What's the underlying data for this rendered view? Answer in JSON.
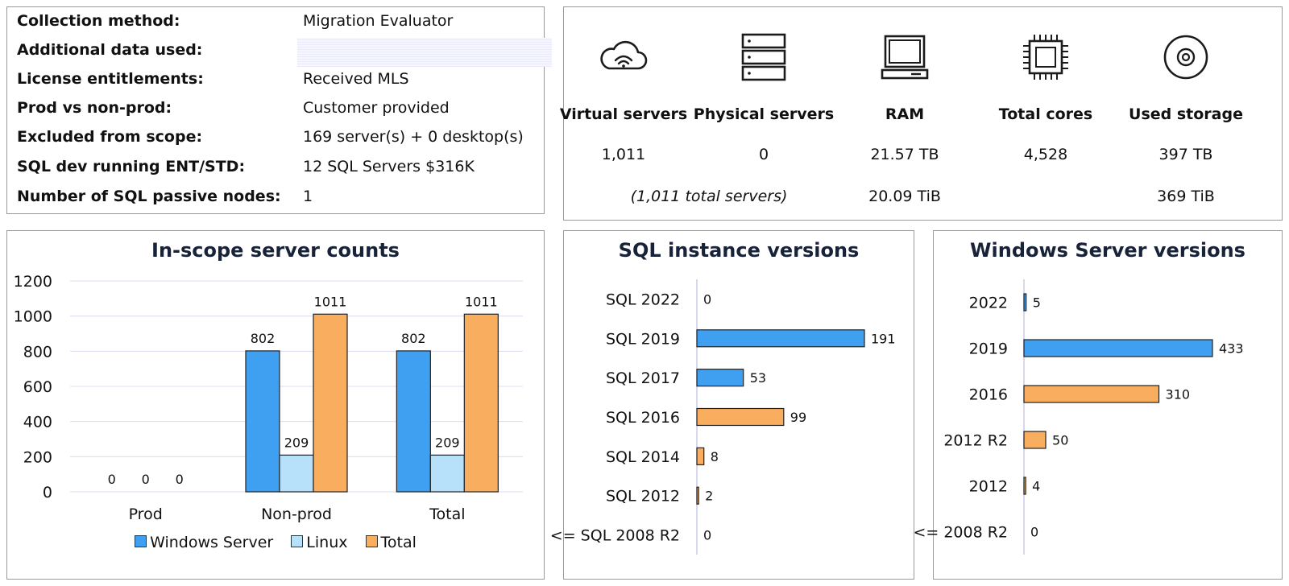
{
  "metadata": {
    "rows": [
      {
        "label": "Collection method:",
        "value": "Migration Evaluator"
      },
      {
        "label": "Additional data used:",
        "value": ""
      },
      {
        "label": "License entitlements:",
        "value": "Received MLS"
      },
      {
        "label": "Prod vs non-prod:",
        "value": "Customer provided"
      },
      {
        "label": "Excluded from scope:",
        "value": "169 server(s) + 0 desktop(s)"
      },
      {
        "label": "SQL dev running ENT/STD:",
        "value": "12 SQL Servers $316K"
      },
      {
        "label": "Number of SQL passive nodes:",
        "value": "1"
      }
    ]
  },
  "summary": {
    "virtual": {
      "label": "Virtual servers",
      "value": "1,011",
      "icon": "cloud-wifi-icon"
    },
    "physical": {
      "label": "Physical servers",
      "value": "0",
      "icon": "server-rack-icon"
    },
    "total_note": "(1,011 total servers)",
    "ram": {
      "label": "RAM",
      "value": "21.57 TB",
      "sub": "20.09 TiB",
      "icon": "computer-icon"
    },
    "cores": {
      "label": "Total cores",
      "value": "4,528",
      "icon": "cpu-chip-icon"
    },
    "storage": {
      "label": "Used storage",
      "value": "397 TB",
      "sub": "369 TiB",
      "icon": "disk-icon"
    }
  },
  "colors": {
    "windows": "#3fa0f2",
    "linux": "#b7e1fb",
    "total": "#f9ad5f",
    "grid": "#dcdcf0",
    "axis": "#c9cbe8",
    "bar_stroke": "#222222"
  },
  "chart_data": [
    {
      "type": "bar",
      "title": "In-scope server counts",
      "categories": [
        "Prod",
        "Non-prod",
        "Total"
      ],
      "series": [
        {
          "name": "Windows Server",
          "values": [
            0,
            802,
            802
          ]
        },
        {
          "name": "Linux",
          "values": [
            0,
            209,
            209
          ]
        },
        {
          "name": "Total",
          "values": [
            0,
            1011,
            1011
          ]
        }
      ],
      "ylim": [
        0,
        1200
      ],
      "yticks": [
        0,
        200,
        400,
        600,
        800,
        1000,
        1200
      ],
      "grid": true,
      "legend": "bottom"
    },
    {
      "type": "bar",
      "orientation": "horizontal",
      "title": "SQL instance versions",
      "categories": [
        "SQL 2022",
        "SQL 2019",
        "SQL 2017",
        "SQL 2016",
        "SQL 2014",
        "SQL 2012",
        "<= SQL 2008 R2"
      ],
      "values": [
        0,
        191,
        53,
        99,
        8,
        2,
        0
      ],
      "groups": [
        "current",
        "current",
        "current",
        "old",
        "old",
        "old",
        "old"
      ],
      "xlim": [
        0,
        191
      ]
    },
    {
      "type": "bar",
      "orientation": "horizontal",
      "title": "Windows Server versions",
      "categories": [
        "2022",
        "2019",
        "2016",
        "2012 R2",
        "2012",
        "<= 2008 R2"
      ],
      "values": [
        5,
        433,
        310,
        50,
        4,
        0
      ],
      "groups": [
        "current",
        "current",
        "old",
        "old",
        "old",
        "old"
      ],
      "xlim": [
        0,
        433
      ]
    }
  ]
}
